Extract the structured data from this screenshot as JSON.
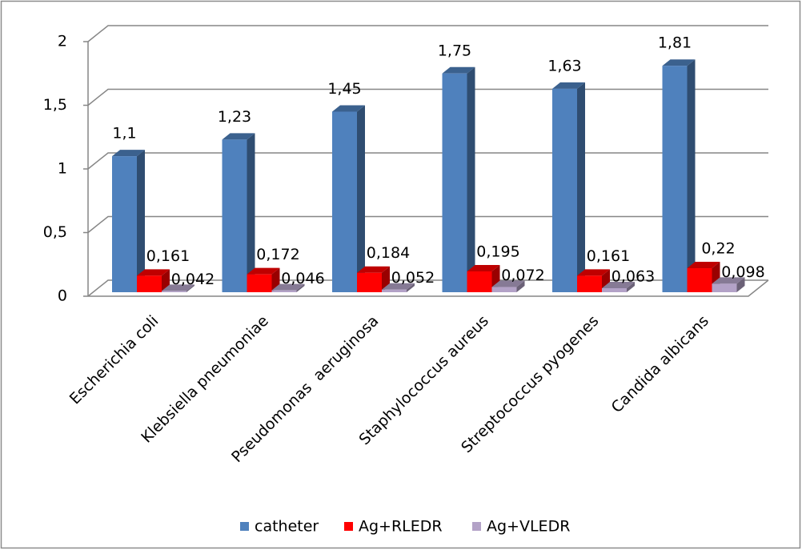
{
  "chart_data": {
    "type": "bar3d",
    "categories": [
      "Escherichia coli",
      "Klebsiella pneumoniae",
      "Pseudomonas  aeruginosa",
      "Staphylococcus aureus",
      "Streptococcus pyogenes",
      "Candida albicans"
    ],
    "series": [
      {
        "name": "catheter",
        "color": "#4f81bd",
        "values": [
          1.1,
          1.23,
          1.45,
          1.75,
          1.63,
          1.81
        ],
        "value_labels": [
          "1,1",
          "1,23",
          "1,45",
          "1,75",
          "1,63",
          "1,81"
        ]
      },
      {
        "name": "Ag+RLEDR",
        "color": "#ff0000",
        "values": [
          0.161,
          0.172,
          0.184,
          0.195,
          0.161,
          0.22
        ],
        "value_labels": [
          "0,161",
          "0,172",
          "0,184",
          "0,195",
          "0,161",
          "0,22"
        ]
      },
      {
        "name": "Ag+VLEDR",
        "color": "#b3a2c7",
        "values": [
          0.042,
          0.046,
          0.052,
          0.072,
          0.063,
          0.098
        ],
        "value_labels": [
          "0,042",
          "0,046",
          "0,052",
          "0,072",
          "0,063",
          "0,098"
        ]
      }
    ],
    "ylim": [
      0,
      2
    ],
    "yticks": [
      0,
      {
        "value": 0.5,
        "label": "0,5"
      },
      1,
      {
        "value": 1.5,
        "label": "1,5"
      },
      2
    ],
    "grid": true,
    "legend": "bottom"
  }
}
